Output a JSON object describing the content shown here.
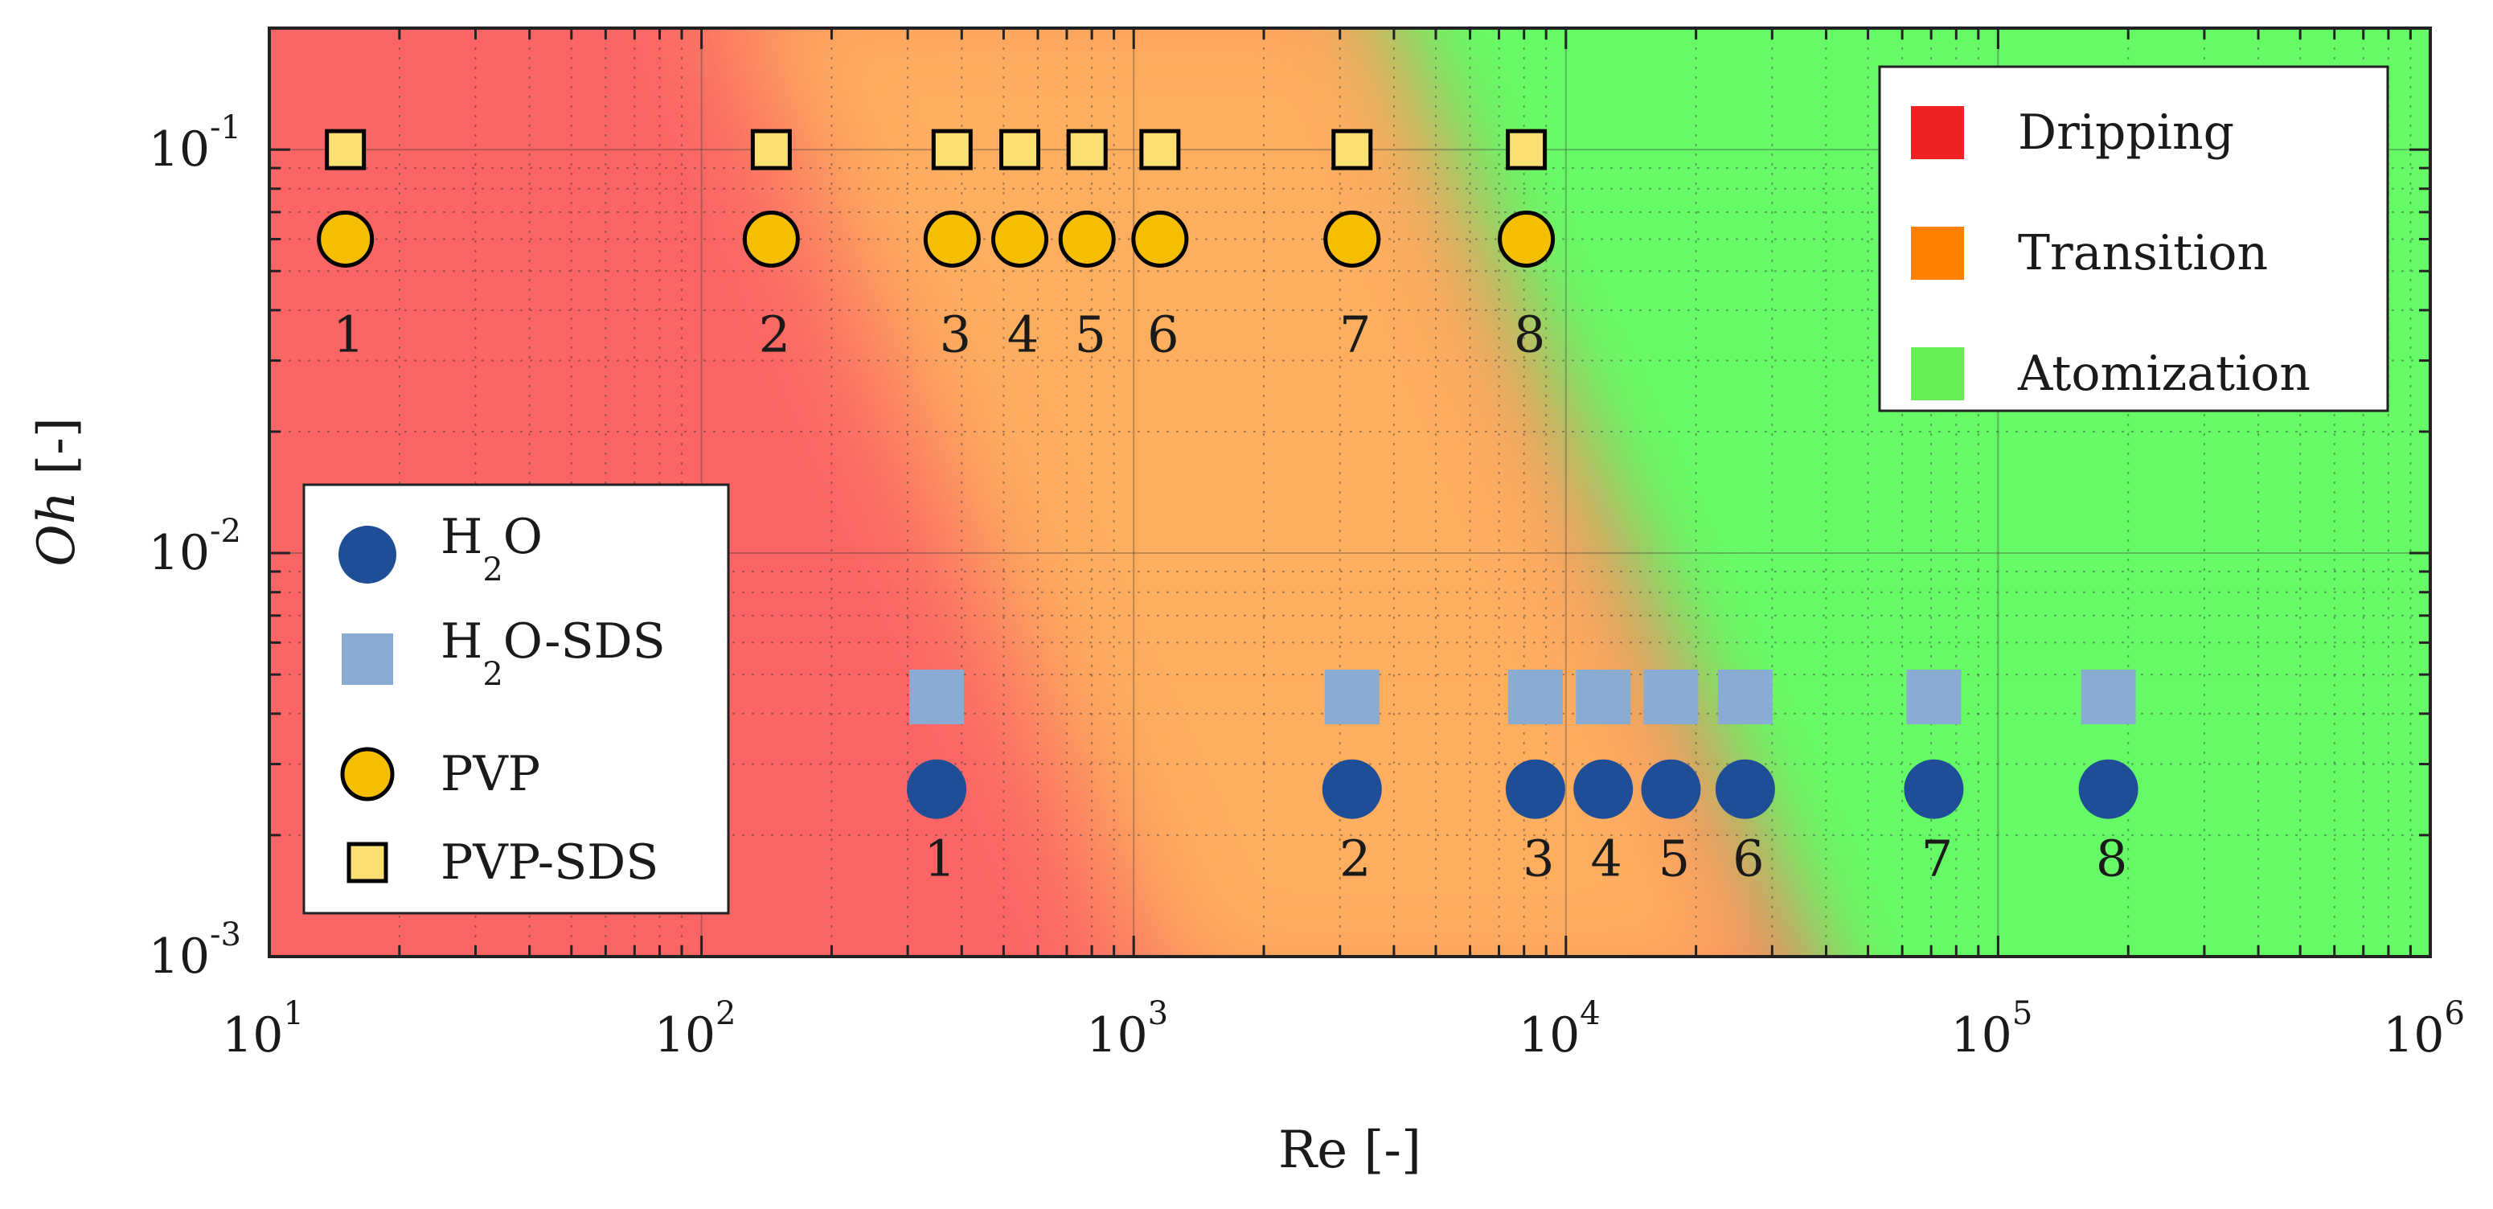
{
  "chart_data": {
    "type": "scatter",
    "title": "",
    "xlabel": "Re [-]",
    "ylabel": "Oh [-]",
    "x_scale": "log",
    "y_scale": "log",
    "xlim": [
      10,
      1000000
    ],
    "ylim": [
      0.001,
      0.2
    ],
    "grid": true,
    "x_ticks": [
      {
        "base": "10",
        "exp": "1",
        "value": 10
      },
      {
        "base": "10",
        "exp": "2",
        "value": 100
      },
      {
        "base": "10",
        "exp": "3",
        "value": 1000
      },
      {
        "base": "10",
        "exp": "4",
        "value": 10000
      },
      {
        "base": "10",
        "exp": "5",
        "value": 100000
      },
      {
        "base": "10",
        "exp": "6",
        "value": 1000000
      }
    ],
    "y_ticks": [
      {
        "base": "10",
        "exp": "-3",
        "value": 0.001
      },
      {
        "base": "10",
        "exp": "-2",
        "value": 0.01
      },
      {
        "base": "10",
        "exp": "-1",
        "value": 0.1
      }
    ],
    "regimes": [
      {
        "name": "Dripping",
        "color": "#ee2222"
      },
      {
        "name": "Transition",
        "color": "#ff8000"
      },
      {
        "name": "Atomization",
        "color": "#66ee55"
      }
    ],
    "region_colors": {
      "dripping": "#fb6565",
      "transition": "#fdae5e",
      "atomization": "#66fb66"
    },
    "series": [
      {
        "name": "H2O",
        "marker": "circle",
        "fill": "#1f4e96",
        "stroke": "none",
        "x": [
          350,
          3200,
          8500,
          12200,
          17500,
          26000,
          71000,
          180000
        ],
        "y": [
          0.0026,
          0.0026,
          0.0026,
          0.0026,
          0.0026,
          0.0026,
          0.0026,
          0.0026
        ],
        "labels": [
          "1",
          "2",
          "3",
          "4",
          "5",
          "6",
          "7",
          "8"
        ]
      },
      {
        "name": "H2O-SDS",
        "marker": "square",
        "fill": "#8aacd2",
        "stroke": "none",
        "x": [
          350,
          3200,
          8500,
          12200,
          17500,
          26000,
          71000,
          180000
        ],
        "y": [
          0.0044,
          0.0044,
          0.0044,
          0.0044,
          0.0044,
          0.0044,
          0.0044,
          0.0044
        ]
      },
      {
        "name": "PVP",
        "marker": "circle",
        "fill": "#f5bf00",
        "stroke": "#000000",
        "x": [
          15,
          145,
          380,
          545,
          780,
          1150,
          3200,
          8100
        ],
        "y": [
          0.06,
          0.06,
          0.06,
          0.06,
          0.06,
          0.06,
          0.06,
          0.06
        ],
        "labels": [
          "1",
          "2",
          "3",
          "4",
          "5",
          "6",
          "7",
          "8"
        ]
      },
      {
        "name": "PVP-SDS",
        "marker": "square",
        "fill": "#fbdf72",
        "stroke": "#000000",
        "x": [
          15,
          145,
          380,
          545,
          780,
          1150,
          3200,
          8100
        ],
        "y": [
          0.1,
          0.1,
          0.1,
          0.1,
          0.1,
          0.1,
          0.1,
          0.1
        ]
      }
    ],
    "legend_series": [
      {
        "base": "H",
        "sub": "2",
        "rest": "O"
      },
      {
        "base": "H",
        "sub": "2",
        "rest": "O-SDS"
      },
      {
        "base": "PVP",
        "sub": "",
        "rest": ""
      },
      {
        "base": "PVP-SDS",
        "sub": "",
        "rest": ""
      }
    ],
    "series_legend_position": "bottom-left",
    "regime_legend_position": "top-right"
  }
}
